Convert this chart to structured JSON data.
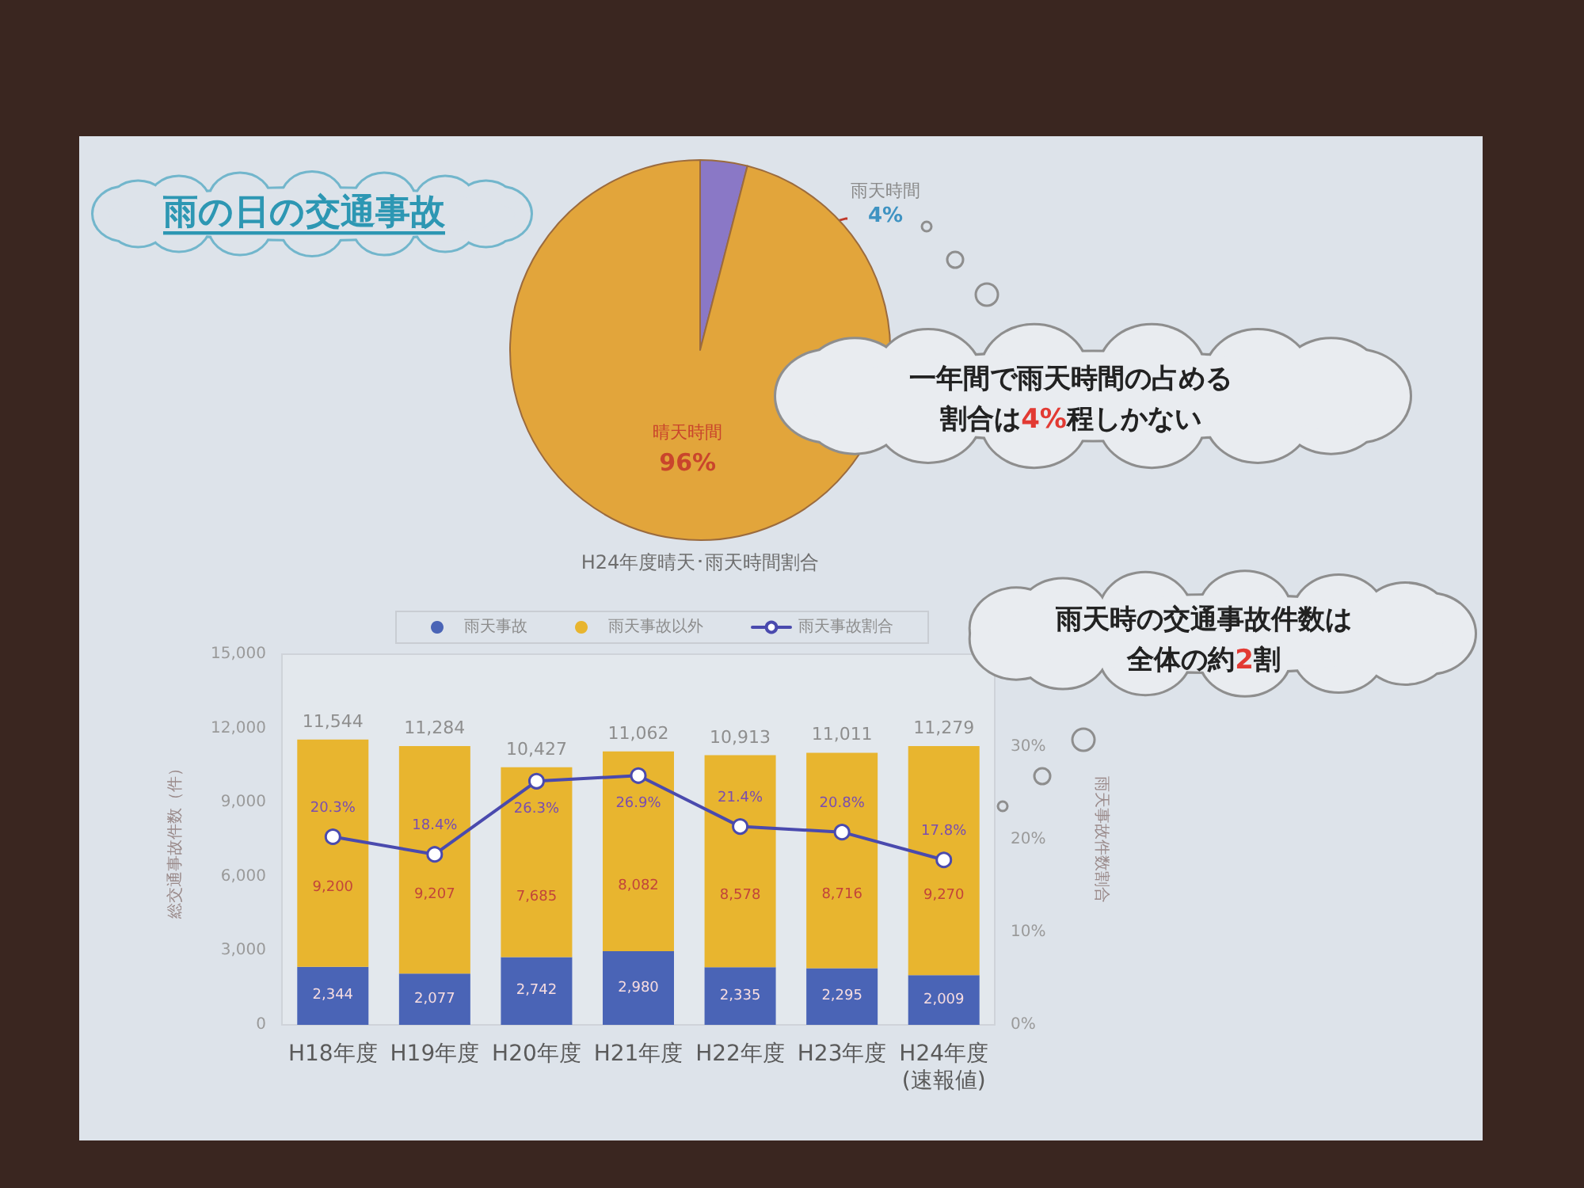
{
  "chart_data": [
    {
      "type": "pie",
      "title": "H24年度晴天･雨天時間割合",
      "categories": [
        "雨天時間",
        "晴天時間"
      ],
      "values": [
        4,
        96
      ],
      "colors": [
        "#8a78c6",
        "#e2a53b"
      ],
      "value_labels": [
        "4%",
        "96%"
      ],
      "annotations": [
        "雨の日の交通事故",
        "一年間で雨天時間の占める割合は4%程しかない"
      ]
    },
    {
      "type": "bar",
      "stacked": true,
      "categories": [
        "H18年度",
        "H19年度",
        "H20年度",
        "H21年度",
        "H22年度",
        "H23年度",
        "H24年度\n(速報値)"
      ],
      "series": [
        {
          "name": "雨天事故",
          "color": "#4a64b6",
          "values": [
            2344,
            2077,
            2742,
            2980,
            2335,
            2295,
            2009
          ],
          "value_labels": [
            "2,344",
            "2,077",
            "2,742",
            "2,980",
            "2,335",
            "2,295",
            "2,009"
          ]
        },
        {
          "name": "雨天事故以外",
          "color": "#e8b52f",
          "values": [
            9200,
            9207,
            7685,
            8082,
            8578,
            8716,
            9270
          ],
          "value_labels": [
            "9,200",
            "9,207",
            "7,685",
            "8,082",
            "8,578",
            "8,716",
            "9,270"
          ]
        },
        {
          "name": "雨天事故割合",
          "type": "line",
          "axis": "y2",
          "color": "#4a4aae",
          "marker": "circle",
          "line_style": "solid",
          "values": [
            20.3,
            18.4,
            26.3,
            26.9,
            21.4,
            20.8,
            17.8
          ],
          "value_labels": [
            "20.3%",
            "18.4%",
            "26.3%",
            "26.9%",
            "21.4%",
            "20.8%",
            "17.8%"
          ]
        }
      ],
      "totals": [
        "11,544",
        "11,284",
        "10,427",
        "11,062",
        "10,913",
        "11,011",
        "11,279"
      ],
      "ylabel": "総交通事故件数（件）",
      "y2label": "雨天事故件数割合",
      "ylim": [
        0,
        15000
      ],
      "yticks": [
        0,
        {
          "value": 3000,
          "label": "3,000"
        },
        {
          "value": 6000,
          "label": "6,000"
        },
        {
          "value": 9000,
          "label": "9,000"
        },
        {
          "value": 12000,
          "label": "12,000"
        },
        {
          "value": 15000,
          "label": "15,000"
        }
      ],
      "y2lim": [
        0,
        40
      ],
      "y2ticks": [
        {
          "value": 0,
          "label": "0%"
        },
        {
          "value": 10,
          "label": "10%"
        },
        {
          "value": 20,
          "label": "20%"
        },
        {
          "value": 30,
          "label": "30%"
        }
      ],
      "legend": "top",
      "grid": false,
      "annotations": [
        "雨天時の交通事故件数は全体の約2割"
      ]
    }
  ]
}
